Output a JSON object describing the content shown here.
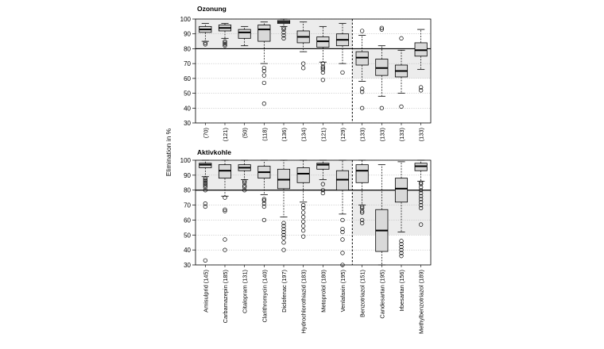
{
  "figure": {
    "ylabel": "Elimination in %",
    "categories": [
      "Amisulprid",
      "Carbamazepin",
      "Citalopram",
      "Clarithromycin",
      "Diclofenac",
      "Hydrochlorothiazid",
      "Metoprolol",
      "Venlafaxin",
      "Benzotriazol",
      "Candesartan",
      "Irbesartan",
      "Methylbenzotriazol"
    ]
  },
  "chart_data": [
    {
      "type": "box",
      "title": "Ozonung",
      "ylabel": "Elimination in %",
      "ylim": [
        30,
        100
      ],
      "yticks": [
        30,
        40,
        50,
        60,
        70,
        80,
        90,
        100
      ],
      "grid": "horizontal dotted",
      "reference_line": 80,
      "group_divider_after": "Venlafaxin",
      "shaded_bands": [
        {
          "from_category": "Amisulprid",
          "to_category": "Venlafaxin",
          "y": [
            80,
            100
          ]
        },
        {
          "from_category": "Benzotriazol",
          "to_category": "Methylbenzotriazol",
          "y": [
            60,
            80
          ]
        }
      ],
      "n_labels": [
        "(70)",
        "(121)",
        "(50)",
        "(118)",
        "(136)",
        "(134)",
        "(121)",
        "(129)",
        "(133)",
        "(133)",
        "(133)",
        "(133)"
      ],
      "boxes": [
        {
          "category": "Amisulprid",
          "whisker_low": 85,
          "q1": 91,
          "median": 93,
          "q3": 95,
          "whisker_high": 97,
          "outliers": [
            83,
            84
          ]
        },
        {
          "category": "Carbamazepin",
          "whisker_low": 87,
          "q1": 92,
          "median": 94,
          "q3": 96,
          "whisker_high": 97,
          "outliers": [
            82,
            83,
            84,
            85
          ]
        },
        {
          "category": "Citalopram",
          "whisker_low": 82,
          "q1": 87,
          "median": 91,
          "q3": 93,
          "whisker_high": 95,
          "outliers": []
        },
        {
          "category": "Clarithromycin",
          "whisker_low": 70,
          "q1": 85,
          "median": 93,
          "q3": 96,
          "whisker_high": 98,
          "outliers": [
            43,
            57,
            62,
            65,
            67
          ]
        },
        {
          "category": "Diclofenac",
          "whisker_low": 95,
          "q1": 97,
          "median": 98,
          "q3": 99,
          "whisker_high": 100,
          "outliers": [
            87,
            89,
            91,
            93,
            94
          ]
        },
        {
          "category": "Hydrochlorothiazid",
          "whisker_low": 78,
          "q1": 84,
          "median": 88,
          "q3": 92,
          "whisker_high": 98,
          "outliers": [
            67,
            70
          ]
        },
        {
          "category": "Metoprolol",
          "whisker_low": 71,
          "q1": 81,
          "median": 85,
          "q3": 88,
          "whisker_high": 95,
          "outliers": [
            59,
            64,
            66,
            67,
            68,
            70
          ]
        },
        {
          "category": "Venlafaxin",
          "whisker_low": 70,
          "q1": 82,
          "median": 86,
          "q3": 90,
          "whisker_high": 97,
          "outliers": [
            64
          ]
        },
        {
          "category": "Benzotriazol",
          "whisker_low": 58,
          "q1": 69,
          "median": 74,
          "q3": 78,
          "whisker_high": 89,
          "outliers": [
            40,
            51,
            53,
            92
          ]
        },
        {
          "category": "Candesartan",
          "whisker_low": 48,
          "q1": 62,
          "median": 67,
          "q3": 73,
          "whisker_high": 82,
          "outliers": [
            40,
            93,
            94
          ]
        },
        {
          "category": "Irbesartan",
          "whisker_low": 50,
          "q1": 61,
          "median": 65,
          "q3": 69,
          "whisker_high": 79,
          "outliers": [
            41,
            87
          ]
        },
        {
          "category": "Methylbenzotriazol",
          "whisker_low": 66,
          "q1": 75,
          "median": 79,
          "q3": 84,
          "whisker_high": 93,
          "outliers": [
            52,
            54
          ]
        }
      ]
    },
    {
      "type": "box",
      "title": "Aktivkohle",
      "ylabel": "Elimination in %",
      "ylim": [
        30,
        100
      ],
      "yticks": [
        30,
        40,
        50,
        60,
        70,
        80,
        90,
        100
      ],
      "grid": "horizontal dotted",
      "reference_line": 80,
      "group_divider_after": "Venlafaxin",
      "shaded_bands": [
        {
          "from_category": "Amisulprid",
          "to_category": "Venlafaxin",
          "y": [
            80,
            100
          ]
        },
        {
          "from_category": "Benzotriazol",
          "to_category": "Methylbenzotriazol",
          "y": [
            50,
            80
          ]
        }
      ],
      "n_labels": [
        "Amisulprid (145)",
        "Carbamazepin (185)",
        "Citalopram (131)",
        "Clarithromycin (140)",
        "Diclofenac (197)",
        "Hydrochlorothiazid (183)",
        "Metoprolol (180)",
        "Venlafaxin (195)",
        "Benzotriazol (151)",
        "Candesartan (195)",
        "Irbesartan (156)",
        "Methylbenzotriazol (189)"
      ],
      "boxes": [
        {
          "category": "Amisulprid",
          "whisker_low": 89,
          "q1": 95,
          "median": 97,
          "q3": 98,
          "whisker_high": 100,
          "outliers": [
            33,
            69,
            71,
            80,
            82,
            83,
            84,
            85,
            86,
            87,
            88
          ]
        },
        {
          "category": "Carbamazepin",
          "whisker_low": 76,
          "q1": 88,
          "median": 93,
          "q3": 97,
          "whisker_high": 100,
          "outliers": [
            40,
            47,
            66,
            67,
            75
          ]
        },
        {
          "category": "Citalopram",
          "whisker_low": 87,
          "q1": 93,
          "median": 95,
          "q3": 97,
          "whisker_high": 100,
          "outliers": [
            80,
            82,
            83,
            85,
            86
          ]
        },
        {
          "category": "Clarithromycin",
          "whisker_low": 77,
          "q1": 88,
          "median": 92,
          "q3": 96,
          "whisker_high": 100,
          "outliers": [
            60,
            69,
            71,
            73,
            74
          ]
        },
        {
          "category": "Diclofenac",
          "whisker_low": 62,
          "q1": 81,
          "median": 87,
          "q3": 94,
          "whisker_high": 100,
          "outliers": [
            40,
            45,
            48,
            50,
            52,
            54,
            56,
            58
          ]
        },
        {
          "category": "Hydrochlorothiazid",
          "whisker_low": 72,
          "q1": 85,
          "median": 91,
          "q3": 95,
          "whisker_high": 100,
          "outliers": [
            49,
            53,
            56,
            59,
            62,
            65,
            68,
            70
          ]
        },
        {
          "category": "Metoprolol",
          "whisker_low": 87,
          "q1": 94,
          "median": 97,
          "q3": 98,
          "whisker_high": 100,
          "outliers": [
            78,
            80,
            84
          ]
        },
        {
          "category": "Venlafaxin",
          "whisker_low": 64,
          "q1": 80,
          "median": 87,
          "q3": 93,
          "whisker_high": 100,
          "outliers": [
            30,
            38,
            47,
            52,
            54,
            60
          ]
        },
        {
          "category": "Benzotriazol",
          "whisker_low": 70,
          "q1": 85,
          "median": 93,
          "q3": 97,
          "whisker_high": 100,
          "outliers": [
            58,
            60,
            65,
            66,
            68,
            69
          ]
        },
        {
          "category": "Candesartan",
          "whisker_low": 30,
          "q1": 39,
          "median": 53,
          "q3": 67,
          "whisker_high": 97,
          "outliers": []
        },
        {
          "category": "Irbesartan",
          "whisker_low": 52,
          "q1": 72,
          "median": 81,
          "q3": 88,
          "whisker_high": 99,
          "outliers": [
            36,
            38,
            40,
            42,
            44,
            46
          ]
        },
        {
          "category": "Methylbenzotriazol",
          "whisker_low": 86,
          "q1": 93,
          "median": 96,
          "q3": 98,
          "whisker_high": 100,
          "outliers": [
            57,
            68,
            70,
            72,
            74,
            76,
            78,
            80,
            82,
            84,
            85
          ]
        }
      ]
    }
  ]
}
